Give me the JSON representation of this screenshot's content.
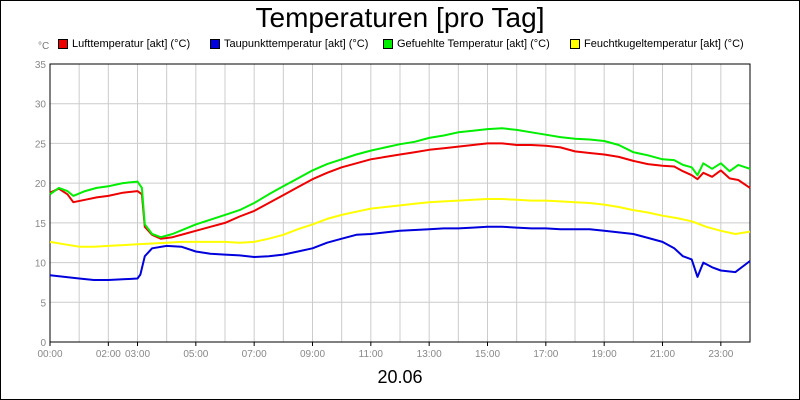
{
  "chart_data": {
    "type": "line",
    "title": "Temperaturen [pro Tag]",
    "unit_label": "°C",
    "date_label": "20.06",
    "ylim": [
      0,
      35
    ],
    "y_ticks": [
      0,
      5,
      10,
      15,
      20,
      25,
      30,
      35
    ],
    "xlim": [
      0,
      24
    ],
    "x_ticks": [
      {
        "h": 0,
        "label": "00:00"
      },
      {
        "h": 2,
        "label": "02:00"
      },
      {
        "h": 3,
        "label": "03:00"
      },
      {
        "h": 5,
        "label": "05:00"
      },
      {
        "h": 7,
        "label": "07:00"
      },
      {
        "h": 9,
        "label": "09:00"
      },
      {
        "h": 11,
        "label": "11:00"
      },
      {
        "h": 13,
        "label": "13:00"
      },
      {
        "h": 15,
        "label": "15:00"
      },
      {
        "h": 17,
        "label": "17:00"
      },
      {
        "h": 19,
        "label": "19:00"
      },
      {
        "h": 21,
        "label": "21:00"
      },
      {
        "h": 23,
        "label": "23:00"
      }
    ],
    "grid": true,
    "legend_placement": "top",
    "series": [
      {
        "name": "Lufttemperatur [akt] (°C)",
        "color": "#ee0000",
        "points": [
          [
            0,
            18.8
          ],
          [
            0.3,
            19.3
          ],
          [
            0.6,
            18.6
          ],
          [
            0.8,
            17.6
          ],
          [
            1.2,
            17.9
          ],
          [
            1.6,
            18.2
          ],
          [
            2.0,
            18.4
          ],
          [
            2.5,
            18.8
          ],
          [
            3.0,
            19.0
          ],
          [
            3.15,
            18.6
          ],
          [
            3.25,
            14.5
          ],
          [
            3.5,
            13.5
          ],
          [
            3.8,
            13.0
          ],
          [
            4.2,
            13.2
          ],
          [
            4.6,
            13.6
          ],
          [
            5.0,
            14.0
          ],
          [
            5.5,
            14.5
          ],
          [
            6.0,
            15.0
          ],
          [
            6.5,
            15.8
          ],
          [
            7.0,
            16.5
          ],
          [
            7.5,
            17.5
          ],
          [
            8.0,
            18.5
          ],
          [
            8.5,
            19.5
          ],
          [
            9.0,
            20.5
          ],
          [
            9.5,
            21.3
          ],
          [
            10.0,
            22.0
          ],
          [
            10.5,
            22.5
          ],
          [
            11.0,
            23.0
          ],
          [
            11.5,
            23.3
          ],
          [
            12.0,
            23.6
          ],
          [
            12.5,
            23.9
          ],
          [
            13.0,
            24.2
          ],
          [
            13.5,
            24.4
          ],
          [
            14.0,
            24.6
          ],
          [
            14.5,
            24.8
          ],
          [
            15.0,
            25.0
          ],
          [
            15.5,
            25.0
          ],
          [
            16.0,
            24.8
          ],
          [
            16.5,
            24.8
          ],
          [
            17.0,
            24.7
          ],
          [
            17.5,
            24.5
          ],
          [
            18.0,
            24.0
          ],
          [
            18.5,
            23.8
          ],
          [
            19.0,
            23.6
          ],
          [
            19.5,
            23.3
          ],
          [
            20.0,
            22.8
          ],
          [
            20.5,
            22.4
          ],
          [
            21.0,
            22.2
          ],
          [
            21.4,
            22.1
          ],
          [
            21.7,
            21.5
          ],
          [
            22.0,
            21.0
          ],
          [
            22.2,
            20.5
          ],
          [
            22.4,
            21.3
          ],
          [
            22.7,
            20.8
          ],
          [
            23.0,
            21.6
          ],
          [
            23.3,
            20.6
          ],
          [
            23.6,
            20.4
          ],
          [
            24.0,
            19.4
          ]
        ]
      },
      {
        "name": "Taupunkttemperatur [akt] (°C)",
        "color": "#0000dd",
        "points": [
          [
            0,
            8.4
          ],
          [
            0.5,
            8.2
          ],
          [
            1.0,
            8.0
          ],
          [
            1.5,
            7.8
          ],
          [
            2.0,
            7.8
          ],
          [
            2.5,
            7.9
          ],
          [
            3.0,
            8.0
          ],
          [
            3.1,
            8.5
          ],
          [
            3.25,
            10.8
          ],
          [
            3.5,
            11.8
          ],
          [
            4.0,
            12.1
          ],
          [
            4.5,
            12.0
          ],
          [
            5.0,
            11.4
          ],
          [
            5.5,
            11.1
          ],
          [
            6.0,
            11.0
          ],
          [
            6.5,
            10.9
          ],
          [
            7.0,
            10.7
          ],
          [
            7.5,
            10.8
          ],
          [
            8.0,
            11.0
          ],
          [
            8.5,
            11.4
          ],
          [
            9.0,
            11.8
          ],
          [
            9.5,
            12.5
          ],
          [
            10.0,
            13.0
          ],
          [
            10.5,
            13.5
          ],
          [
            11.0,
            13.6
          ],
          [
            11.5,
            13.8
          ],
          [
            12.0,
            14.0
          ],
          [
            12.5,
            14.1
          ],
          [
            13.0,
            14.2
          ],
          [
            13.5,
            14.3
          ],
          [
            14.0,
            14.3
          ],
          [
            14.5,
            14.4
          ],
          [
            15.0,
            14.5
          ],
          [
            15.5,
            14.5
          ],
          [
            16.0,
            14.4
          ],
          [
            16.5,
            14.3
          ],
          [
            17.0,
            14.3
          ],
          [
            17.5,
            14.2
          ],
          [
            18.0,
            14.2
          ],
          [
            18.5,
            14.2
          ],
          [
            19.0,
            14.0
          ],
          [
            19.5,
            13.8
          ],
          [
            20.0,
            13.6
          ],
          [
            20.5,
            13.1
          ],
          [
            21.0,
            12.6
          ],
          [
            21.4,
            11.8
          ],
          [
            21.7,
            10.8
          ],
          [
            22.0,
            10.4
          ],
          [
            22.2,
            8.2
          ],
          [
            22.4,
            10.0
          ],
          [
            22.7,
            9.4
          ],
          [
            23.0,
            9.0
          ],
          [
            23.5,
            8.8
          ],
          [
            24.0,
            10.2
          ]
        ]
      },
      {
        "name": "Gefuehlte Temperatur [akt] (°C)",
        "color": "#00ee00",
        "points": [
          [
            0,
            18.6
          ],
          [
            0.3,
            19.4
          ],
          [
            0.6,
            19.0
          ],
          [
            0.8,
            18.4
          ],
          [
            1.2,
            19.0
          ],
          [
            1.6,
            19.4
          ],
          [
            2.0,
            19.6
          ],
          [
            2.5,
            20.0
          ],
          [
            3.0,
            20.2
          ],
          [
            3.15,
            19.4
          ],
          [
            3.25,
            14.8
          ],
          [
            3.5,
            13.6
          ],
          [
            3.8,
            13.2
          ],
          [
            4.2,
            13.6
          ],
          [
            4.6,
            14.2
          ],
          [
            5.0,
            14.8
          ],
          [
            5.5,
            15.4
          ],
          [
            6.0,
            16.0
          ],
          [
            6.5,
            16.6
          ],
          [
            7.0,
            17.5
          ],
          [
            7.5,
            18.6
          ],
          [
            8.0,
            19.6
          ],
          [
            8.5,
            20.6
          ],
          [
            9.0,
            21.6
          ],
          [
            9.5,
            22.4
          ],
          [
            10.0,
            23.0
          ],
          [
            10.5,
            23.6
          ],
          [
            11.0,
            24.1
          ],
          [
            11.5,
            24.5
          ],
          [
            12.0,
            24.9
          ],
          [
            12.5,
            25.2
          ],
          [
            13.0,
            25.7
          ],
          [
            13.5,
            26.0
          ],
          [
            14.0,
            26.4
          ],
          [
            14.5,
            26.6
          ],
          [
            15.0,
            26.8
          ],
          [
            15.5,
            26.9
          ],
          [
            16.0,
            26.7
          ],
          [
            16.5,
            26.4
          ],
          [
            17.0,
            26.1
          ],
          [
            17.5,
            25.8
          ],
          [
            18.0,
            25.6
          ],
          [
            18.5,
            25.5
          ],
          [
            19.0,
            25.3
          ],
          [
            19.5,
            24.8
          ],
          [
            20.0,
            23.9
          ],
          [
            20.5,
            23.5
          ],
          [
            21.0,
            23.0
          ],
          [
            21.4,
            22.9
          ],
          [
            21.7,
            22.3
          ],
          [
            22.0,
            22.0
          ],
          [
            22.2,
            21.0
          ],
          [
            22.4,
            22.5
          ],
          [
            22.7,
            21.8
          ],
          [
            23.0,
            22.5
          ],
          [
            23.3,
            21.5
          ],
          [
            23.6,
            22.3
          ],
          [
            24.0,
            21.8
          ]
        ]
      },
      {
        "name": "Feuchtkugeltemperatur [akt] (°C)",
        "color": "#ffff00",
        "points": [
          [
            0,
            12.6
          ],
          [
            0.5,
            12.3
          ],
          [
            1.0,
            12.0
          ],
          [
            1.5,
            12.0
          ],
          [
            2.0,
            12.1
          ],
          [
            2.5,
            12.2
          ],
          [
            3.0,
            12.3
          ],
          [
            3.5,
            12.4
          ],
          [
            4.0,
            12.5
          ],
          [
            4.5,
            12.6
          ],
          [
            5.0,
            12.6
          ],
          [
            5.5,
            12.6
          ],
          [
            6.0,
            12.6
          ],
          [
            6.5,
            12.5
          ],
          [
            7.0,
            12.6
          ],
          [
            7.5,
            13.0
          ],
          [
            8.0,
            13.5
          ],
          [
            8.5,
            14.2
          ],
          [
            9.0,
            14.8
          ],
          [
            9.5,
            15.5
          ],
          [
            10.0,
            16.0
          ],
          [
            10.5,
            16.4
          ],
          [
            11.0,
            16.8
          ],
          [
            11.5,
            17.0
          ],
          [
            12.0,
            17.2
          ],
          [
            12.5,
            17.4
          ],
          [
            13.0,
            17.6
          ],
          [
            13.5,
            17.7
          ],
          [
            14.0,
            17.8
          ],
          [
            14.5,
            17.9
          ],
          [
            15.0,
            18.0
          ],
          [
            15.5,
            18.0
          ],
          [
            16.0,
            17.9
          ],
          [
            16.5,
            17.8
          ],
          [
            17.0,
            17.8
          ],
          [
            17.5,
            17.7
          ],
          [
            18.0,
            17.6
          ],
          [
            18.5,
            17.5
          ],
          [
            19.0,
            17.3
          ],
          [
            19.5,
            17.0
          ],
          [
            20.0,
            16.6
          ],
          [
            20.5,
            16.3
          ],
          [
            21.0,
            15.9
          ],
          [
            21.5,
            15.6
          ],
          [
            22.0,
            15.2
          ],
          [
            22.5,
            14.5
          ],
          [
            23.0,
            14.0
          ],
          [
            23.5,
            13.6
          ],
          [
            24.0,
            13.9
          ]
        ]
      }
    ]
  }
}
